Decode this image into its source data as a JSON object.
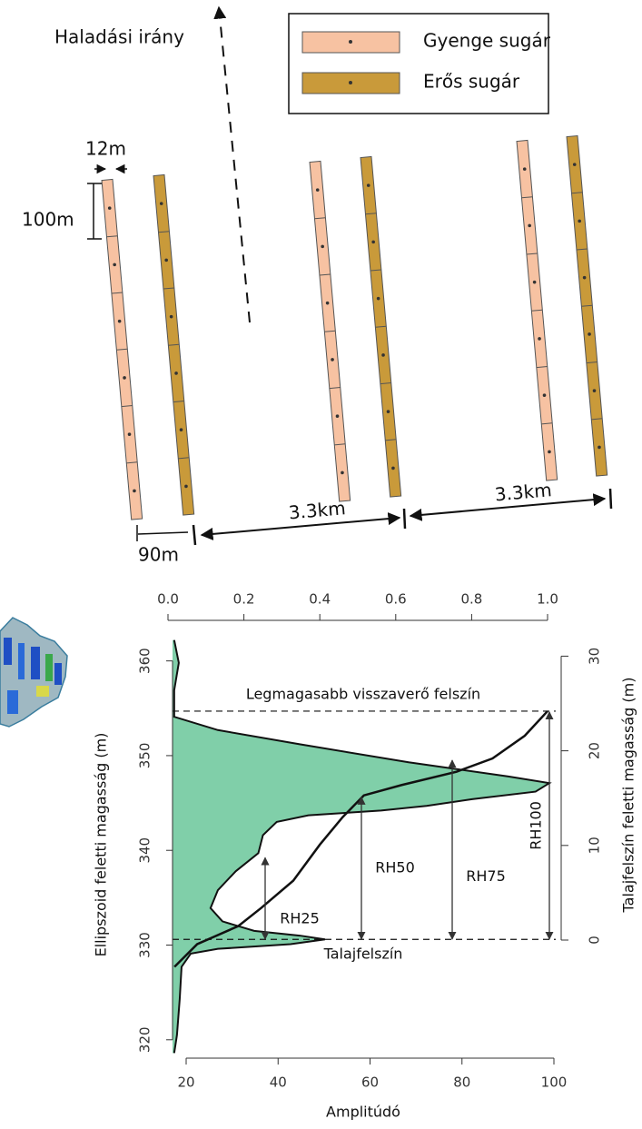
{
  "diagram": {
    "direction_label": "Haladási irány",
    "legend": [
      {
        "label": "Gyenge sugár",
        "color": "#f7c2a2"
      },
      {
        "label": "Erős sugár",
        "color": "#c99a3a"
      }
    ],
    "dimensions": {
      "beam_width": "12m",
      "segment_length": "100m",
      "pair_spacing": "90m",
      "track_spacing": [
        "3.3km",
        "3.3km"
      ]
    }
  },
  "chart": {
    "x_label": "Amplitúdó",
    "y_label": "Ellipszoid feletti magasság (m)",
    "y2_label": "Talajfelszín feletti magasság (m)",
    "xlim": [
      20,
      100
    ],
    "xticks": [
      20,
      40,
      60,
      80,
      100
    ],
    "x2lim": [
      0,
      1
    ],
    "x2ticks": [
      {
        "value": 0,
        "label": "0.0"
      },
      {
        "value": 0.2,
        "label": "0.2"
      },
      {
        "value": 0.4,
        "label": "0.4"
      },
      {
        "value": 0.6,
        "label": "0.6"
      },
      {
        "value": 0.8,
        "label": "0.8"
      },
      {
        "value": 1,
        "label": "1.0"
      }
    ],
    "ylim": [
      319.5,
      361.5
    ],
    "yticks": [
      320,
      330,
      340,
      350,
      360
    ],
    "y2lim": [
      0,
      31
    ],
    "y2ticks": [
      0,
      10,
      20,
      30
    ],
    "fill_color": "#80cfa9",
    "waveform": {
      "elevation": [
        362.2,
        359.8,
        356.9,
        354.1,
        352.7,
        351.2,
        349.3,
        347.8,
        347.1,
        346.2,
        345.4,
        344.7,
        344.2,
        343.7,
        343.0,
        341.6,
        339.7,
        337.8,
        335.8,
        333.9,
        332.5,
        331.5,
        331.0,
        330.6,
        330.1,
        329.6,
        329.1,
        327.7,
        324.3,
        320.5,
        318.6
      ],
      "amplitude": [
        17.4,
        18.4,
        17.4,
        17.4,
        26.9,
        44.7,
        68.4,
        90.1,
        99.0,
        96.0,
        82.2,
        72.3,
        62.4,
        46.6,
        39.7,
        36.7,
        35.7,
        30.8,
        26.9,
        25.3,
        27.9,
        34.8,
        44.7,
        50.2,
        42.7,
        26.9,
        21.0,
        19.0,
        18.6,
        18.0,
        17.4
      ]
    },
    "cumulative": {
      "elevation": [
        327.7,
        330.1,
        332.0,
        333.9,
        336.8,
        340.6,
        343.5,
        345.8,
        346.9,
        348.3,
        349.7,
        352.1,
        354.7
      ],
      "fraction": [
        0.017,
        0.077,
        0.185,
        0.245,
        0.33,
        0.4,
        0.46,
        0.516,
        0.616,
        0.76,
        0.855,
        0.94,
        1.0
      ]
    },
    "reference_lines": [
      {
        "label": "Legmagasabb visszaverő felszín",
        "value": 354.7
      },
      {
        "label": "Talajfelszín",
        "value": 330.6
      }
    ],
    "rh_metrics": [
      {
        "label": "RH25",
        "value": 8.8
      },
      {
        "label": "RH50",
        "value": 15.2
      },
      {
        "label": "RH75",
        "value": 19.1
      },
      {
        "label": "RH100",
        "value": 24.2
      }
    ]
  }
}
